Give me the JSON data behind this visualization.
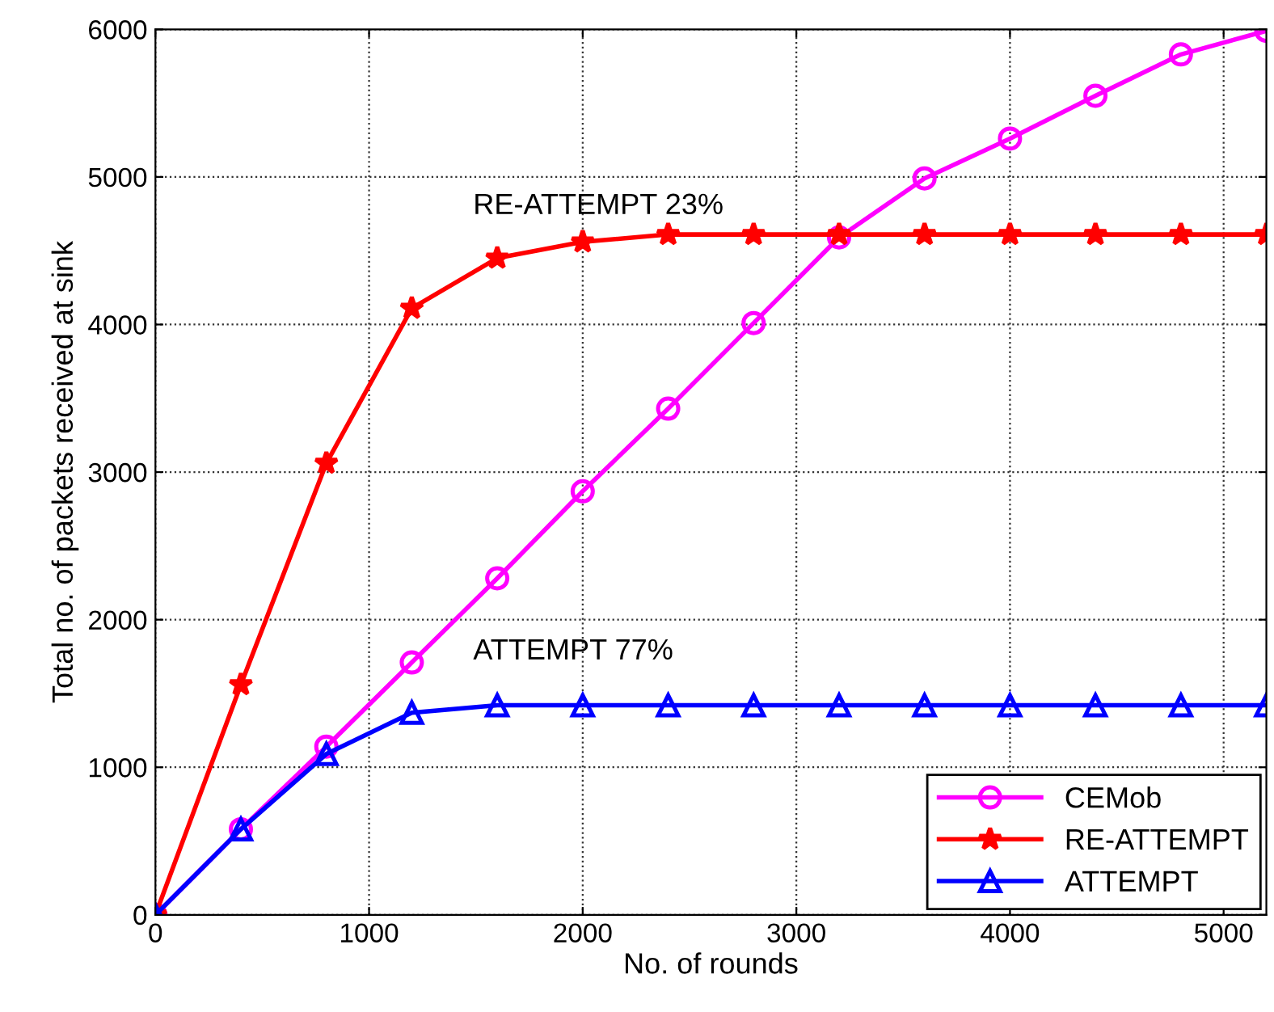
{
  "chart_data": {
    "type": "line",
    "xlabel": "No. of rounds",
    "ylabel": "Total no. of packets received at sink",
    "x": [
      0,
      400,
      800,
      1200,
      1600,
      2000,
      2400,
      2800,
      3200,
      3600,
      4000,
      4400,
      4800,
      5200
    ],
    "series": [
      {
        "name": "CEMob",
        "color": "#ff00ff",
        "marker": "circle",
        "values": [
          0,
          580,
          1140,
          1710,
          2280,
          2870,
          3430,
          4010,
          4590,
          4990,
          5260,
          5550,
          5830,
          5990
        ]
      },
      {
        "name": "RE-ATTEMPT",
        "color": "#ff0000",
        "marker": "star",
        "values": [
          0,
          1560,
          3060,
          4110,
          4450,
          4560,
          4610,
          4610,
          4610,
          4610,
          4610,
          4610,
          4610,
          4610
        ]
      },
      {
        "name": "ATTEMPT",
        "color": "#0000ff",
        "marker": "triangle",
        "values": [
          0,
          580,
          1090,
          1370,
          1420,
          1420,
          1420,
          1420,
          1420,
          1420,
          1420,
          1420,
          1420,
          1420
        ]
      }
    ],
    "annotations": [
      "RE-ATTEMPT 23%",
      "ATTEMPT 77%"
    ],
    "xlim": [
      0,
      5200
    ],
    "xticks": [
      0,
      1000,
      2000,
      3000,
      4000,
      5000
    ],
    "ylim": [
      0,
      6000
    ],
    "yticks": [
      0,
      1000,
      2000,
      3000,
      4000,
      5000,
      6000
    ],
    "grid": true,
    "legend": "bottom right",
    "line_style": "solid"
  }
}
